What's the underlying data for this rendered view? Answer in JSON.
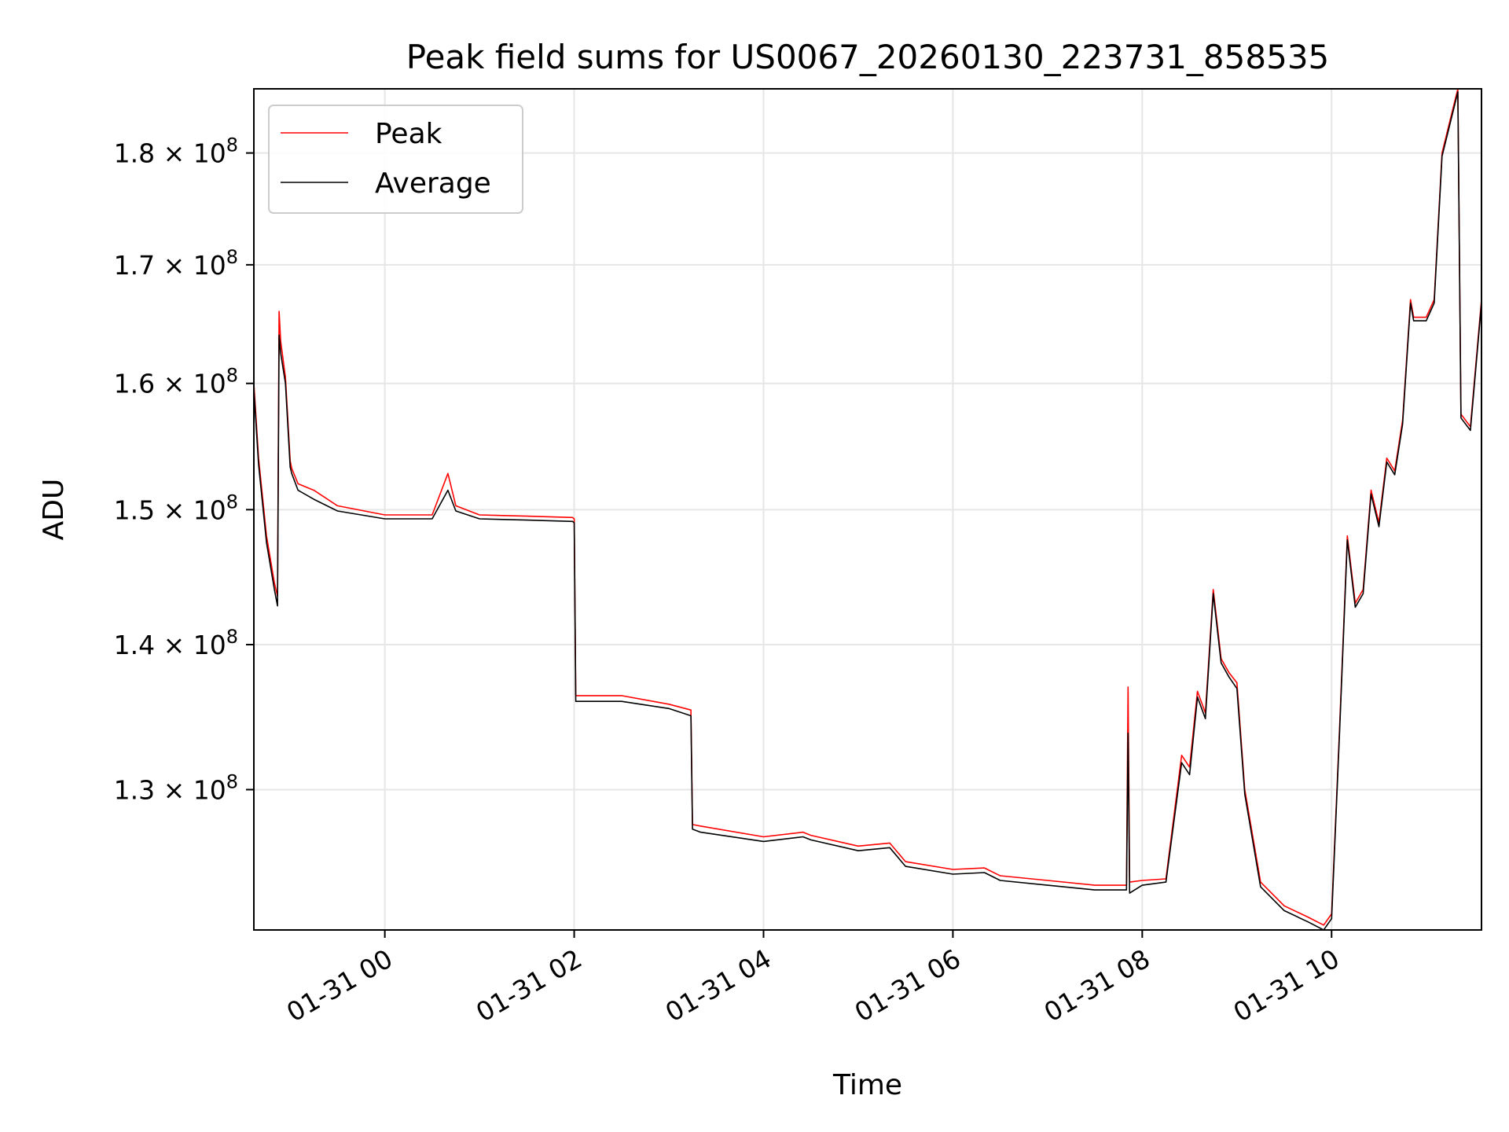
{
  "chart_data": {
    "type": "line",
    "title": "Peak field sums for US0067_20260130_223731_858535",
    "xlabel": "Time",
    "ylabel": "ADU",
    "y_scale": "log",
    "grid": true,
    "legend_position": "top-left",
    "xlim": [
      "2026-01-30 22:37",
      "2026-01-31 11:35"
    ],
    "ylim": [
      121000000,
      186000000
    ],
    "x_ticks": [
      "2026-01-31 00:00",
      "2026-01-31 02:00",
      "2026-01-31 04:00",
      "2026-01-31 06:00",
      "2026-01-31 08:00",
      "2026-01-31 10:00"
    ],
    "x_tick_labels": [
      "01-31 00",
      "01-31 02",
      "01-31 04",
      "01-31 06",
      "01-31 08",
      "01-31 10"
    ],
    "y_ticks": [
      130000000,
      140000000,
      150000000,
      160000000,
      170000000,
      180000000
    ],
    "y_tick_labels": [
      {
        "mant": "1.3 × 10",
        "exp": "8"
      },
      {
        "mant": "1.4 × 10",
        "exp": "8"
      },
      {
        "mant": "1.5 × 10",
        "exp": "8"
      },
      {
        "mant": "1.6 × 10",
        "exp": "8"
      },
      {
        "mant": "1.7 × 10",
        "exp": "8"
      },
      {
        "mant": "1.8 × 10",
        "exp": "8"
      }
    ],
    "series": [
      {
        "name": "Peak",
        "color": "#ff0000",
        "x": [
          "2026-01-30 22:37",
          "2026-01-30 22:40",
          "2026-01-30 22:45",
          "2026-01-30 22:50",
          "2026-01-30 22:52",
          "2026-01-30 22:53",
          "2026-01-30 22:54",
          "2026-01-30 22:57",
          "2026-01-30 23:00",
          "2026-01-30 23:01",
          "2026-01-30 23:05",
          "2026-01-30 23:15",
          "2026-01-30 23:30",
          "2026-01-31 00:00",
          "2026-01-31 00:30",
          "2026-01-31 00:40",
          "2026-01-31 00:45",
          "2026-01-31 01:00",
          "2026-01-31 01:30",
          "2026-01-31 01:59",
          "2026-01-31 02:00",
          "2026-01-31 02:01",
          "2026-01-31 02:30",
          "2026-01-31 03:00",
          "2026-01-31 03:14",
          "2026-01-31 03:15",
          "2026-01-31 03:20",
          "2026-01-31 04:00",
          "2026-01-31 04:25",
          "2026-01-31 04:30",
          "2026-01-31 05:00",
          "2026-01-31 05:20",
          "2026-01-31 05:30",
          "2026-01-31 06:00",
          "2026-01-31 06:20",
          "2026-01-31 06:30",
          "2026-01-31 07:00",
          "2026-01-31 07:30",
          "2026-01-31 07:50",
          "2026-01-31 07:51",
          "2026-01-31 07:52",
          "2026-01-31 08:00",
          "2026-01-31 08:15",
          "2026-01-31 08:25",
          "2026-01-31 08:30",
          "2026-01-31 08:35",
          "2026-01-31 08:40",
          "2026-01-31 08:45",
          "2026-01-31 08:50",
          "2026-01-31 08:55",
          "2026-01-31 09:00",
          "2026-01-31 09:05",
          "2026-01-31 09:15",
          "2026-01-31 09:30",
          "2026-01-31 09:45",
          "2026-01-31 09:55",
          "2026-01-31 10:00",
          "2026-01-31 10:05",
          "2026-01-31 10:10",
          "2026-01-31 10:15",
          "2026-01-31 10:20",
          "2026-01-31 10:25",
          "2026-01-31 10:30",
          "2026-01-31 10:35",
          "2026-01-31 10:40",
          "2026-01-31 10:45",
          "2026-01-31 10:50",
          "2026-01-31 10:52",
          "2026-01-31 11:00",
          "2026-01-31 11:05",
          "2026-01-31 11:10",
          "2026-01-31 11:20",
          "2026-01-31 11:22",
          "2026-01-31 11:28",
          "2026-01-31 11:35"
        ],
        "values": [
          160000000,
          154000000,
          148000000,
          144500000,
          143500000,
          166000000,
          163500000,
          160500000,
          153800000,
          153200000,
          152000000,
          151500000,
          150300000,
          149600000,
          149600000,
          152800000,
          150300000,
          149600000,
          149500000,
          149400000,
          149300000,
          136400000,
          136400000,
          135800000,
          135400000,
          127700000,
          127600000,
          126900000,
          127200000,
          127000000,
          126300000,
          126500000,
          125300000,
          124800000,
          124900000,
          124400000,
          124100000,
          123800000,
          123800000,
          137000000,
          124000000,
          124100000,
          124200000,
          132300000,
          131500000,
          136700000,
          135200000,
          144000000,
          139000000,
          138000000,
          137300000,
          130000000,
          124000000,
          122500000,
          121800000,
          121300000,
          122000000,
          134000000,
          148000000,
          143000000,
          144000000,
          151500000,
          149000000,
          154000000,
          153000000,
          157000000,
          167000000,
          165500000,
          165500000,
          167000000,
          180000000,
          186000000,
          157500000,
          156500000,
          167000000
        ]
      },
      {
        "name": "Average",
        "color": "#000000",
        "x": [
          "2026-01-30 22:37",
          "2026-01-30 22:40",
          "2026-01-30 22:45",
          "2026-01-30 22:50",
          "2026-01-30 22:52",
          "2026-01-30 22:53",
          "2026-01-30 22:54",
          "2026-01-30 22:57",
          "2026-01-30 23:00",
          "2026-01-30 23:01",
          "2026-01-30 23:05",
          "2026-01-30 23:15",
          "2026-01-30 23:30",
          "2026-01-31 00:00",
          "2026-01-31 00:30",
          "2026-01-31 00:40",
          "2026-01-31 00:45",
          "2026-01-31 01:00",
          "2026-01-31 01:30",
          "2026-01-31 01:59",
          "2026-01-31 02:00",
          "2026-01-31 02:01",
          "2026-01-31 02:30",
          "2026-01-31 03:00",
          "2026-01-31 03:14",
          "2026-01-31 03:15",
          "2026-01-31 03:20",
          "2026-01-31 04:00",
          "2026-01-31 04:25",
          "2026-01-31 04:30",
          "2026-01-31 05:00",
          "2026-01-31 05:20",
          "2026-01-31 05:30",
          "2026-01-31 06:00",
          "2026-01-31 06:20",
          "2026-01-31 06:30",
          "2026-01-31 07:00",
          "2026-01-31 07:30",
          "2026-01-31 07:50",
          "2026-01-31 07:51",
          "2026-01-31 07:52",
          "2026-01-31 08:00",
          "2026-01-31 08:15",
          "2026-01-31 08:25",
          "2026-01-31 08:30",
          "2026-01-31 08:35",
          "2026-01-31 08:40",
          "2026-01-31 08:45",
          "2026-01-31 08:50",
          "2026-01-31 08:55",
          "2026-01-31 09:00",
          "2026-01-31 09:05",
          "2026-01-31 09:15",
          "2026-01-31 09:30",
          "2026-01-31 09:45",
          "2026-01-31 09:55",
          "2026-01-31 10:00",
          "2026-01-31 10:05",
          "2026-01-31 10:10",
          "2026-01-31 10:15",
          "2026-01-31 10:20",
          "2026-01-31 10:25",
          "2026-01-31 10:30",
          "2026-01-31 10:35",
          "2026-01-31 10:40",
          "2026-01-31 10:45",
          "2026-01-31 10:50",
          "2026-01-31 10:52",
          "2026-01-31 11:00",
          "2026-01-31 11:05",
          "2026-01-31 11:10",
          "2026-01-31 11:20",
          "2026-01-31 11:22",
          "2026-01-31 11:28",
          "2026-01-31 11:35"
        ],
        "values": [
          159500000,
          153500000,
          147500000,
          144000000,
          142800000,
          164000000,
          162500000,
          160000000,
          153300000,
          152800000,
          151500000,
          150800000,
          149900000,
          149300000,
          149300000,
          151500000,
          149900000,
          149300000,
          149200000,
          149100000,
          149000000,
          136000000,
          136000000,
          135500000,
          135000000,
          127400000,
          127200000,
          126600000,
          126900000,
          126700000,
          126000000,
          126200000,
          125000000,
          124500000,
          124600000,
          124100000,
          123800000,
          123500000,
          123500000,
          133800000,
          123300000,
          123800000,
          124000000,
          131800000,
          131000000,
          136300000,
          134800000,
          143700000,
          138700000,
          137700000,
          136900000,
          129700000,
          123700000,
          122200000,
          121500000,
          121000000,
          121700000,
          133700000,
          147700000,
          142700000,
          143700000,
          151200000,
          148700000,
          153700000,
          152700000,
          156700000,
          166700000,
          165200000,
          165200000,
          166700000,
          179700000,
          185700000,
          157200000,
          156200000,
          166700000
        ]
      }
    ]
  }
}
